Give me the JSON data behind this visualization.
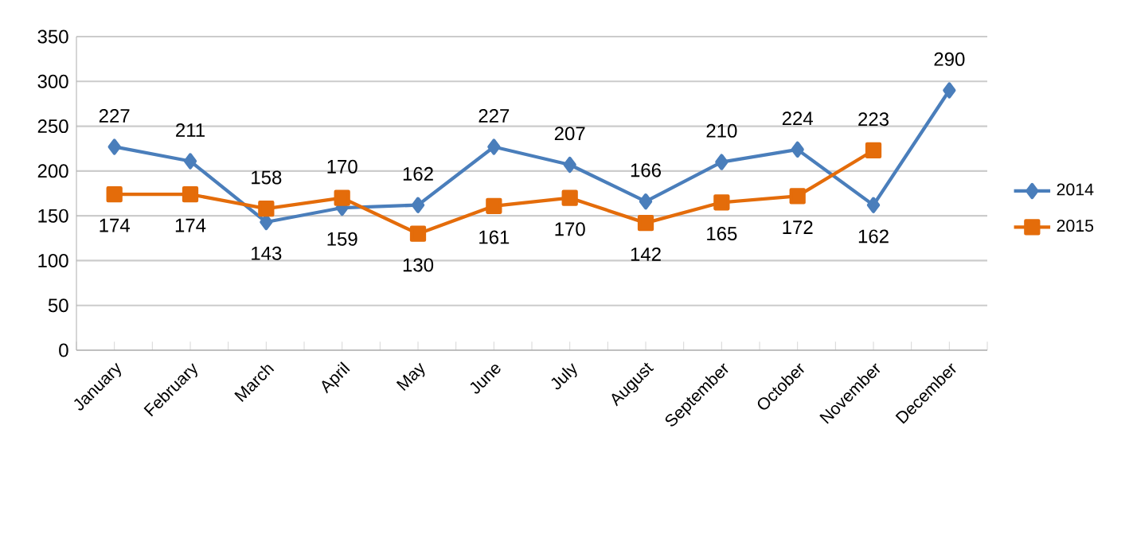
{
  "chart_data": {
    "type": "line",
    "categories": [
      "January",
      "February",
      "March",
      "April",
      "May",
      "June",
      "July",
      "August",
      "September",
      "October",
      "November",
      "December"
    ],
    "series": [
      {
        "name": "2014",
        "color": "#4a7ebb",
        "marker": "diamond",
        "values": [
          227,
          211,
          143,
          159,
          162,
          227,
          207,
          166,
          210,
          224,
          162,
          290
        ]
      },
      {
        "name": "2015",
        "color": "#e46c0a",
        "marker": "square",
        "values": [
          174,
          174,
          158,
          170,
          130,
          161,
          170,
          142,
          165,
          172,
          223,
          null
        ]
      }
    ],
    "ylim": [
      0,
      350
    ],
    "yticks": [
      0,
      50,
      100,
      150,
      200,
      250,
      300,
      350
    ],
    "grid": "y",
    "legend": "right",
    "data_labels": true
  }
}
